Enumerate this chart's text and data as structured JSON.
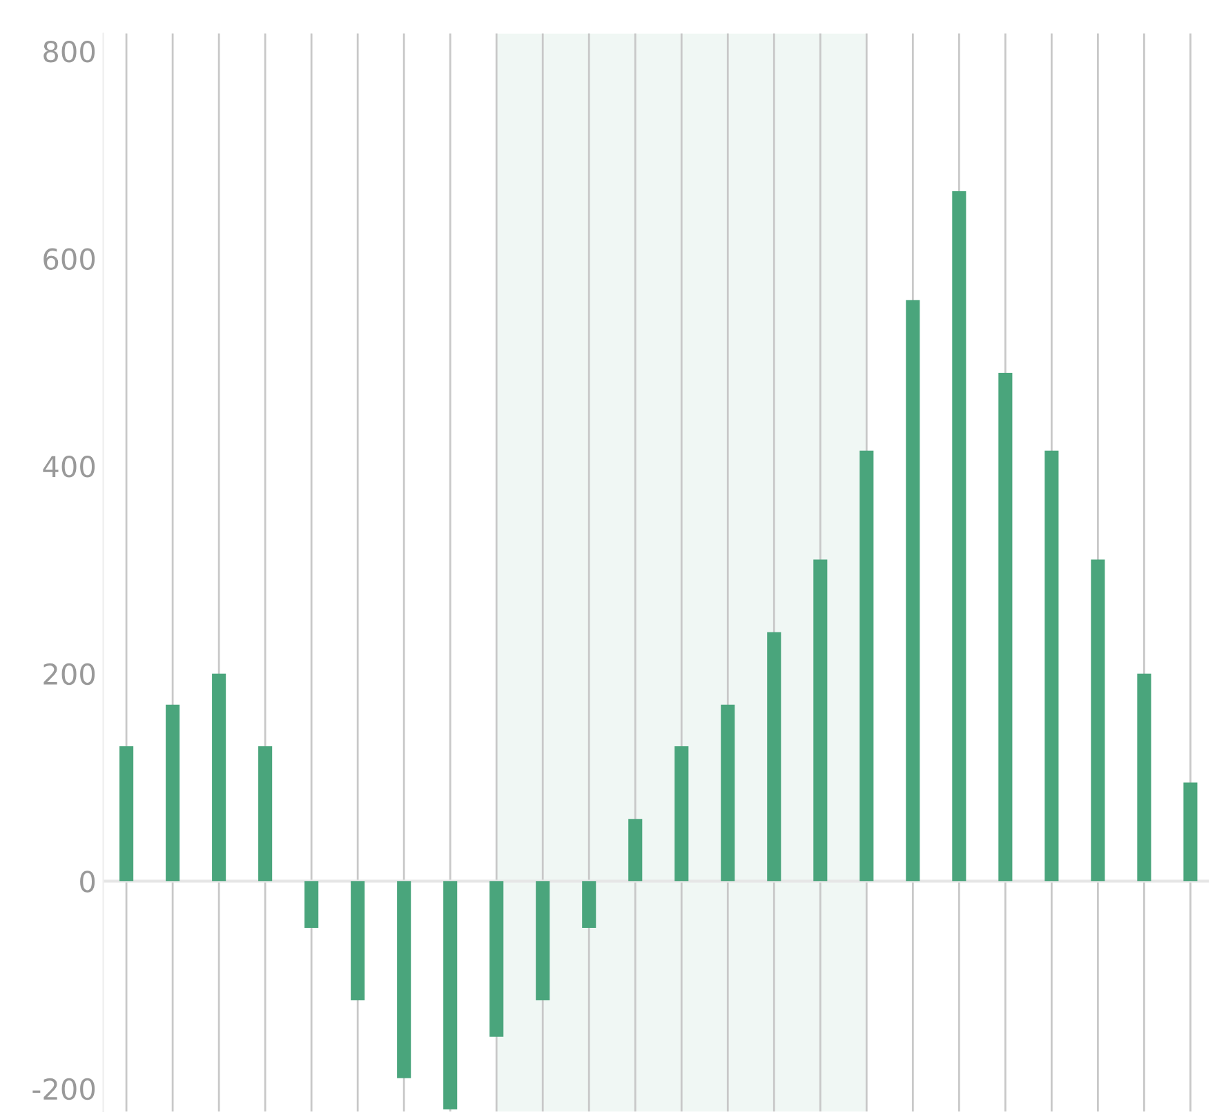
{
  "chart_data": {
    "type": "bar",
    "categories": [
      null,
      null,
      null,
      null,
      null,
      null,
      null,
      null,
      null,
      null,
      null,
      null,
      null,
      null,
      null,
      null,
      null,
      null,
      null,
      null,
      null,
      null,
      null,
      null
    ],
    "values": [
      130,
      170,
      200,
      130,
      -45,
      -115,
      -190,
      -220,
      -150,
      -115,
      -45,
      60,
      130,
      170,
      240,
      310,
      415,
      560,
      665,
      490,
      415,
      310,
      200,
      95
    ],
    "color": "#4aa57c",
    "ylim": [
      -222,
      817
    ],
    "yticks": [
      -200,
      0,
      200,
      400,
      600,
      800
    ],
    "grid": "x"
  }
}
